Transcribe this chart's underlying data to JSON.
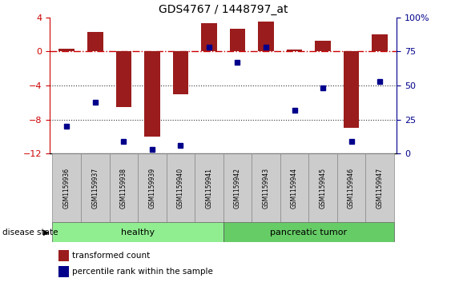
{
  "title": "GDS4767 / 1448797_at",
  "samples": [
    "GSM1159936",
    "GSM1159937",
    "GSM1159938",
    "GSM1159939",
    "GSM1159940",
    "GSM1159941",
    "GSM1159942",
    "GSM1159943",
    "GSM1159944",
    "GSM1159945",
    "GSM1159946",
    "GSM1159947"
  ],
  "red_bars": [
    0.3,
    2.3,
    -6.5,
    -10.0,
    -5.0,
    3.3,
    2.7,
    3.5,
    0.2,
    1.3,
    -9.0,
    2.0
  ],
  "blue_dots_pct": [
    20,
    38,
    9,
    3,
    6,
    78,
    67,
    78,
    32,
    48,
    9,
    53
  ],
  "ylim_left": [
    -12,
    4
  ],
  "ylim_right": [
    0,
    100
  ],
  "yticks_left": [
    4,
    0,
    -4,
    -8,
    -12
  ],
  "yticks_right": [
    100,
    75,
    50,
    25,
    0
  ],
  "bar_color": "#9B1C1C",
  "dot_color": "#00008B",
  "hline_color": "#CC0000",
  "dotted_line_color": "#333333",
  "groups": [
    {
      "label": "healthy",
      "start": 0,
      "end": 5,
      "color": "#90EE90"
    },
    {
      "label": "pancreatic tumor",
      "start": 6,
      "end": 11,
      "color": "#66CC66"
    }
  ],
  "disease_state_label": "disease state",
  "legend_entries": [
    {
      "label": "transformed count",
      "color": "#9B1C1C"
    },
    {
      "label": "percentile rank within the sample",
      "color": "#00008B"
    }
  ],
  "sample_box_color": "#cccccc",
  "sample_box_edge": "#888888",
  "background_color": "#ffffff"
}
